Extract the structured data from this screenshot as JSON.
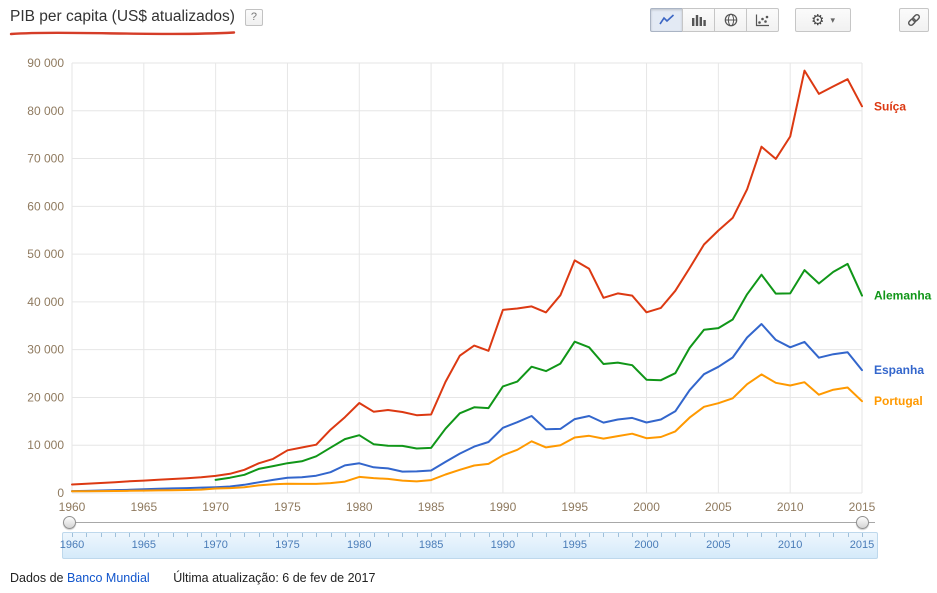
{
  "header": {
    "title": "PIB per capita (US$ atualizados)",
    "help_label": "?"
  },
  "toolbar": {
    "chart_types": [
      "line",
      "bar",
      "map",
      "scatter"
    ],
    "selected_chart_type": "line",
    "gear_glyph": "⚙",
    "caret_glyph": "▾"
  },
  "chart_data": {
    "type": "line",
    "title": "PIB per capita (US$ atualizados)",
    "xlabel": "",
    "ylabel": "",
    "xlim": [
      1960,
      2015
    ],
    "ylim": [
      0,
      90000
    ],
    "grid": true,
    "legend_position": "right",
    "axis_label_color": "#8f7a5f",
    "grid_color": "#e6e6e6",
    "x_ticks": [
      1960,
      1965,
      1970,
      1975,
      1980,
      1985,
      1990,
      1995,
      2000,
      2005,
      2010,
      2015
    ],
    "y_ticks": [
      0,
      10000,
      20000,
      30000,
      40000,
      50000,
      60000,
      70000,
      80000,
      90000
    ],
    "y_tick_labels": [
      "0",
      "10 000",
      "20 000",
      "30 000",
      "40 000",
      "50 000",
      "60 000",
      "70 000",
      "80 000",
      "90 000"
    ],
    "x": [
      1960,
      1961,
      1962,
      1963,
      1964,
      1965,
      1966,
      1967,
      1968,
      1969,
      1970,
      1971,
      1972,
      1973,
      1974,
      1975,
      1976,
      1977,
      1978,
      1979,
      1980,
      1981,
      1982,
      1983,
      1984,
      1985,
      1986,
      1987,
      1988,
      1989,
      1990,
      1991,
      1992,
      1993,
      1994,
      1995,
      1996,
      1997,
      1998,
      1999,
      2000,
      2001,
      2002,
      2003,
      2004,
      2005,
      2006,
      2007,
      2008,
      2009,
      2010,
      2011,
      2012,
      2013,
      2014,
      2015
    ],
    "series": [
      {
        "name": "Suíça",
        "color": "#dc3912",
        "values": [
          1787,
          1920,
          2090,
          2250,
          2450,
          2590,
          2760,
          2930,
          3080,
          3280,
          3578,
          4029,
          4859,
          6219,
          7132,
          8942,
          9529,
          10119,
          13253,
          15867,
          18832,
          17019,
          17375,
          16945,
          16290,
          16434,
          23253,
          28731,
          30841,
          29767,
          38333,
          38610,
          39053,
          37803,
          41393,
          48687,
          46923,
          40855,
          41779,
          41315,
          37813,
          38747,
          42321,
          47073,
          52015,
          54952,
          57580,
          63555,
          72488,
          69927,
          74606,
          88416,
          83538,
          85112,
          86606,
          80945
        ]
      },
      {
        "name": "Alemanha",
        "color": "#109618",
        "values": [
          null,
          null,
          null,
          null,
          null,
          null,
          null,
          null,
          null,
          null,
          2747,
          3192,
          3810,
          5046,
          5639,
          6236,
          6634,
          7682,
          9483,
          11284,
          12092,
          10210,
          9906,
          9863,
          9313,
          9430,
          13463,
          16676,
          17931,
          17764,
          22304,
          23306,
          26432,
          25523,
          27077,
          31658,
          30486,
          26998,
          27300,
          26750,
          23719,
          23607,
          25078,
          30360,
          34166,
          34507,
          36323,
          41587,
          45699,
          41733,
          41786,
          46645,
          43858,
          46286,
          47960,
          41313
        ]
      },
      {
        "name": "Espanha",
        "color": "#3366cc",
        "values": [
          396,
          450,
          520,
          609,
          675,
          774,
          890,
          968,
          1025,
          1132,
          1205,
          1355,
          1708,
          2247,
          2749,
          3209,
          3279,
          3627,
          4356,
          5770,
          6209,
          5371,
          5159,
          4478,
          4521,
          4699,
          6515,
          8239,
          9703,
          10681,
          13650,
          14811,
          16112,
          13339,
          13415,
          15471,
          16110,
          14730,
          15394,
          15715,
          14750,
          15374,
          17101,
          21510,
          24861,
          26419,
          28365,
          32550,
          35366,
          32042,
          30502,
          31636,
          28324,
          29059,
          29461,
          25732
        ]
      },
      {
        "name": "Portugal",
        "color": "#ff9900",
        "values": [
          360,
          382,
          400,
          422,
          460,
          497,
          540,
          585,
          637,
          705,
          934,
          1030,
          1207,
          1587,
          1827,
          1953,
          1903,
          1909,
          2075,
          2382,
          3368,
          3120,
          2942,
          2594,
          2434,
          2705,
          3862,
          4858,
          5751,
          6095,
          7885,
          9042,
          10826,
          9547,
          9978,
          11624,
          11977,
          11382,
          11917,
          12405,
          11471,
          11721,
          12886,
          15773,
          18047,
          18785,
          19821,
          22780,
          24815,
          23063,
          22499,
          23196,
          20577,
          21618,
          22077,
          19223
        ]
      }
    ]
  },
  "slider": {
    "years": [
      "1960",
      "1965",
      "1970",
      "1975",
      "1980",
      "1985",
      "1990",
      "1995",
      "2000",
      "2005",
      "2010",
      "2015"
    ],
    "range_start": "1960",
    "range_end": "2015"
  },
  "footer": {
    "source_prefix": "Dados de",
    "source_link": "Banco Mundial",
    "updated": "Última atualização: 6 de fev de 2017"
  }
}
